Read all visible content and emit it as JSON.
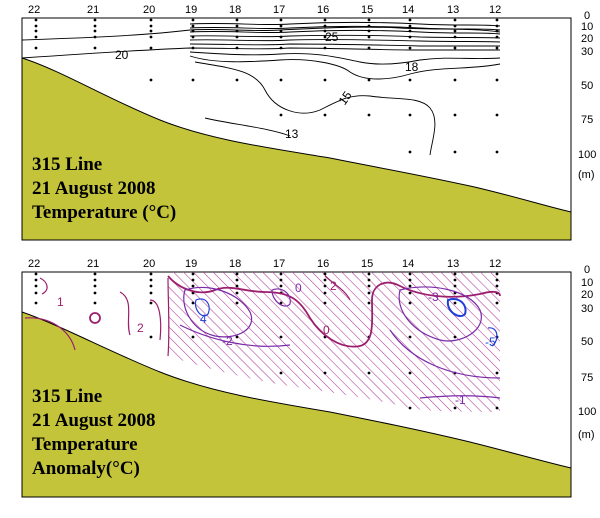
{
  "colors": {
    "land": "#c4c43a",
    "frame": "#000000",
    "contour": "#000000",
    "anomaly_positive": "#9c1e6e",
    "anomaly_negative": "#7a2aa8",
    "anomaly_strong_negative": "#1f3fd8",
    "hatch": "#b03a9a"
  },
  "panels": [
    {
      "title_lines": [
        "315 Line",
        "21 August 2008",
        "Temperature (°C)"
      ],
      "stations": [
        "22",
        "21",
        "20",
        "19",
        "18",
        "17",
        "16",
        "15",
        "14",
        "13",
        "12"
      ],
      "depth_ticks": [
        "0",
        "10",
        "20",
        "30",
        "50",
        "75",
        "100"
      ],
      "depth_unit": "(m)",
      "contour_labels": [
        "25",
        "20",
        "18",
        "15",
        "13"
      ]
    },
    {
      "title_lines": [
        "315 Line",
        "21 August 2008",
        "Temperature",
        "Anomaly(°C)"
      ],
      "stations": [
        "22",
        "21",
        "20",
        "19",
        "18",
        "17",
        "16",
        "15",
        "14",
        "13",
        "12"
      ],
      "depth_ticks": [
        "0",
        "10",
        "20",
        "30",
        "50",
        "75",
        "100"
      ],
      "depth_unit": "(m)",
      "contour_labels": [
        "1",
        "2",
        "0",
        "-2",
        "4",
        "2",
        "0",
        "-3",
        "-5",
        "-1"
      ]
    }
  ],
  "chart_data": [
    {
      "type": "contour",
      "title": "315 Line 21 August 2008 Temperature (°C)",
      "x_categories": [
        "22",
        "21",
        "20",
        "19",
        "18",
        "17",
        "16",
        "15",
        "14",
        "13",
        "12"
      ],
      "y_ticks": [
        0,
        10,
        20,
        30,
        50,
        75,
        100
      ],
      "ylabel": "(m)",
      "contour_levels": [
        25,
        20,
        18,
        15,
        13
      ]
    },
    {
      "type": "contour",
      "title": "315 Line 21 August 2008 Temperature Anomaly(°C)",
      "x_categories": [
        "22",
        "21",
        "20",
        "19",
        "18",
        "17",
        "16",
        "15",
        "14",
        "13",
        "12"
      ],
      "y_ticks": [
        0,
        10,
        20,
        30,
        50,
        75,
        100
      ],
      "ylabel": "(m)",
      "contour_levels": [
        1,
        2,
        0,
        -2,
        4,
        2,
        0,
        -3,
        -5,
        -1
      ],
      "hatched": "negative anomaly"
    }
  ]
}
